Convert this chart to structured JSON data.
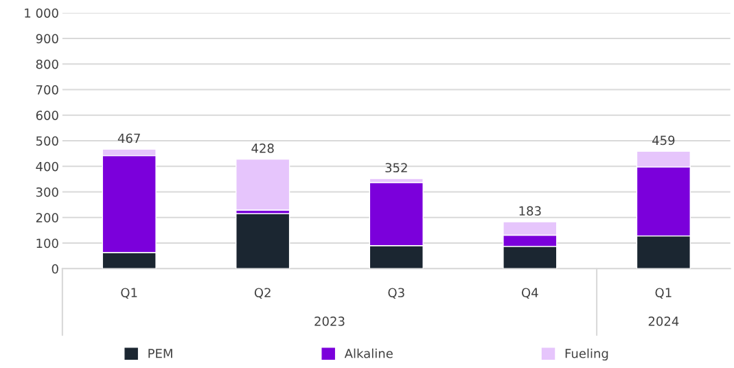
{
  "chart_data": {
    "type": "bar",
    "stacked": true,
    "categories": [
      "Q1",
      "Q2",
      "Q3",
      "Q4",
      "Q1"
    ],
    "series": [
      {
        "name": "PEM",
        "color": "#1b2631",
        "values": [
          63,
          215,
          90,
          87,
          128
        ]
      },
      {
        "name": "Alkaline",
        "color": "#7b00db",
        "values": [
          379,
          14,
          247,
          44,
          269
        ]
      },
      {
        "name": "Fueling",
        "color": "#e6c5fc",
        "values": [
          25,
          199,
          15,
          52,
          62
        ]
      }
    ],
    "totals": [
      "467",
      "428",
      "352",
      "183",
      "459"
    ],
    "annotations": [
      "2023",
      "2024"
    ],
    "ylim": [
      0,
      1000
    ],
    "yticks": [
      0,
      100,
      200,
      300,
      400,
      500,
      600,
      700,
      800,
      900,
      {
        "value": 1000,
        "label": "1 000"
      }
    ],
    "grid": "y",
    "legend": "bottom"
  }
}
